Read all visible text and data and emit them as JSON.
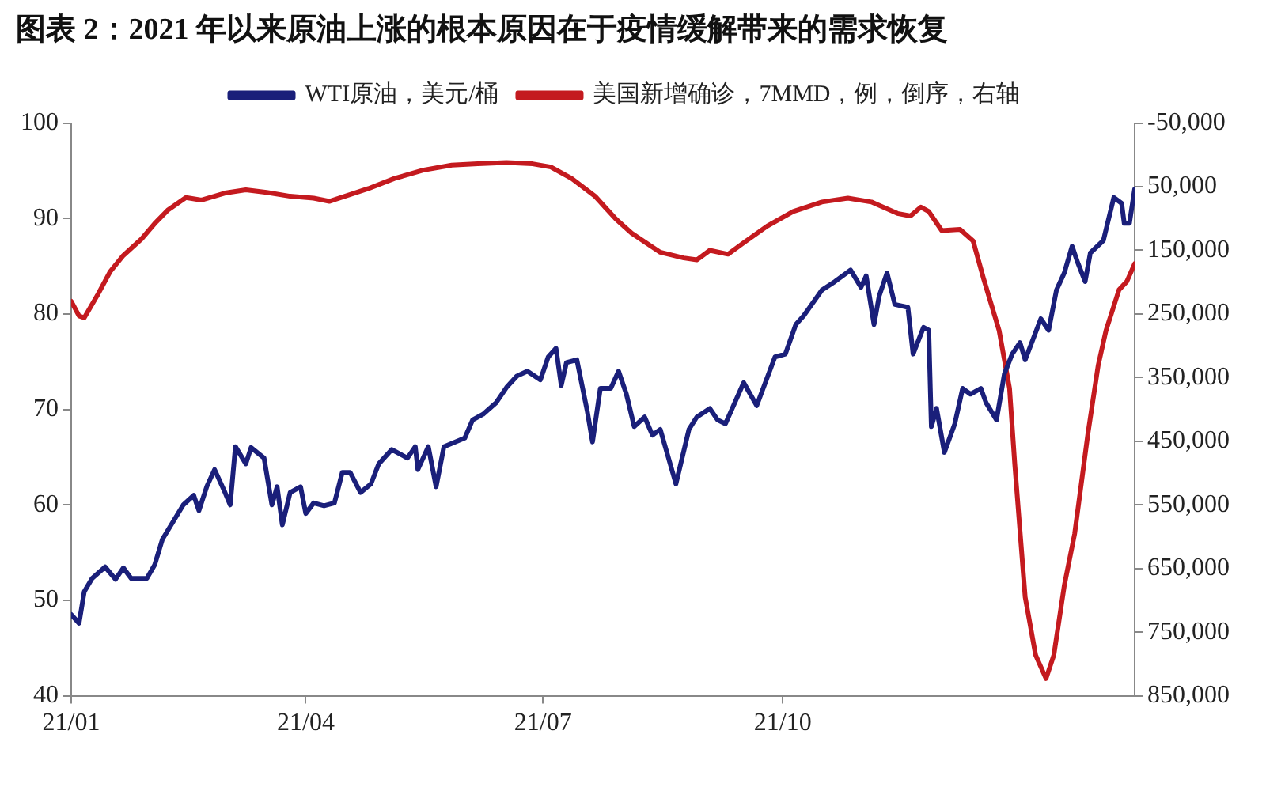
{
  "chart_data": {
    "type": "line",
    "title": "图表 2：2021 年以来原油上涨的根本原因在于疫情缓解带来的需求恢复",
    "marker": "none",
    "line_style": "solid",
    "grid": false,
    "legend": "top",
    "xlim": [
      "2021-01-01",
      "2022-02-13"
    ],
    "xticks": [
      {
        "value": "2021-01-01",
        "label": "21/01"
      },
      {
        "value": "2021-04-01",
        "label": "21/04"
      },
      {
        "value": "2021-07-01",
        "label": "21/07"
      },
      {
        "value": "2021-10-01",
        "label": "21/10"
      }
    ],
    "ylim": [
      40,
      100
    ],
    "yticks": [
      40,
      50,
      60,
      70,
      80,
      90,
      100
    ],
    "y2lim": [
      850000,
      -50000
    ],
    "y2ticks": [
      {
        "value": -50000,
        "label": "-50,000"
      },
      {
        "value": 50000,
        "label": "50,000"
      },
      {
        "value": 150000,
        "label": "150,000"
      },
      {
        "value": 250000,
        "label": "250,000"
      },
      {
        "value": 350000,
        "label": "350,000"
      },
      {
        "value": 450000,
        "label": "450,000"
      },
      {
        "value": 550000,
        "label": "550,000"
      },
      {
        "value": 650000,
        "label": "650,000"
      },
      {
        "value": 750000,
        "label": "750,000"
      },
      {
        "value": 850000,
        "label": "850,000"
      }
    ],
    "series": [
      {
        "name": "WTI原油，美元/桶",
        "color": "#1a1f7a",
        "x": [
          "2021-01-01",
          "2021-01-04",
          "2021-01-06",
          "2021-01-09",
          "2021-01-14",
          "2021-01-18",
          "2021-01-21",
          "2021-01-24",
          "2021-01-30",
          "2021-02-02",
          "2021-02-05",
          "2021-02-09",
          "2021-02-13",
          "2021-02-17",
          "2021-02-19",
          "2021-02-22",
          "2021-02-25",
          "2021-03-01",
          "2021-03-03",
          "2021-03-05",
          "2021-03-09",
          "2021-03-11",
          "2021-03-16",
          "2021-03-19",
          "2021-03-21",
          "2021-03-23",
          "2021-03-26",
          "2021-03-30",
          "2021-04-01",
          "2021-04-04",
          "2021-04-08",
          "2021-04-12",
          "2021-04-15",
          "2021-04-18",
          "2021-04-22",
          "2021-04-26",
          "2021-04-29",
          "2021-05-04",
          "2021-05-10",
          "2021-05-13",
          "2021-05-14",
          "2021-05-18",
          "2021-05-21",
          "2021-05-24",
          "2021-06-01",
          "2021-06-04",
          "2021-06-08",
          "2021-06-13",
          "2021-06-17",
          "2021-06-21",
          "2021-06-25",
          "2021-06-30",
          "2021-07-03",
          "2021-07-06",
          "2021-07-08",
          "2021-07-10",
          "2021-07-14",
          "2021-07-18",
          "2021-07-20",
          "2021-07-23",
          "2021-07-27",
          "2021-07-30",
          "2021-08-02",
          "2021-08-05",
          "2021-08-09",
          "2021-08-12",
          "2021-08-15",
          "2021-08-21",
          "2021-08-26",
          "2021-08-29",
          "2021-09-03",
          "2021-09-06",
          "2021-09-09",
          "2021-09-16",
          "2021-09-21",
          "2021-09-28",
          "2021-10-02",
          "2021-10-06",
          "2021-10-09",
          "2021-10-16",
          "2021-10-21",
          "2021-10-27",
          "2021-10-31",
          "2021-11-02",
          "2021-11-05",
          "2021-11-07",
          "2021-11-10",
          "2021-11-13",
          "2021-11-18",
          "2021-11-20",
          "2021-11-24",
          "2021-11-26",
          "2021-11-27",
          "2021-11-29",
          "2021-12-02",
          "2021-12-06",
          "2021-12-09",
          "2021-12-12",
          "2021-12-16",
          "2021-12-18",
          "2021-12-22",
          "2021-12-25",
          "2021-12-28",
          "2021-12-31",
          "2022-01-02",
          "2022-01-08",
          "2022-01-11",
          "2022-01-14",
          "2022-01-17",
          "2022-01-20",
          "2022-01-22",
          "2022-01-25",
          "2022-01-27",
          "2022-02-01",
          "2022-02-05",
          "2022-02-08",
          "2022-02-09",
          "2022-02-11",
          "2022-02-13"
        ],
        "values": [
          48.5,
          47.6,
          50.9,
          52.3,
          53.5,
          52.2,
          53.4,
          52.3,
          52.3,
          53.7,
          56.4,
          58.2,
          60.0,
          61.0,
          59.4,
          61.9,
          63.7,
          61.3,
          60.0,
          66.1,
          64.3,
          66.0,
          64.9,
          60.0,
          61.9,
          57.9,
          61.3,
          61.9,
          59.1,
          60.2,
          59.9,
          60.2,
          63.4,
          63.4,
          61.3,
          62.2,
          64.3,
          65.8,
          64.9,
          66.1,
          63.7,
          66.1,
          61.9,
          66.1,
          67.0,
          68.9,
          69.5,
          70.7,
          72.3,
          73.5,
          74.0,
          73.1,
          75.5,
          76.4,
          72.5,
          74.9,
          75.2,
          69.8,
          66.6,
          72.2,
          72.2,
          74.0,
          71.6,
          68.2,
          69.2,
          67.3,
          67.9,
          62.2,
          67.9,
          69.2,
          70.1,
          68.9,
          68.5,
          72.8,
          70.4,
          75.5,
          75.8,
          78.9,
          79.8,
          82.5,
          83.4,
          84.6,
          82.8,
          84.0,
          78.9,
          81.9,
          84.3,
          81.0,
          80.7,
          75.8,
          78.6,
          78.3,
          68.2,
          70.1,
          65.5,
          68.5,
          72.2,
          71.6,
          72.2,
          70.7,
          68.9,
          73.7,
          75.8,
          77.0,
          75.2,
          79.5,
          78.3,
          82.5,
          84.3,
          87.1,
          85.5,
          83.4,
          86.4,
          87.7,
          92.2,
          91.6,
          89.5,
          89.5,
          93.1
        ]
      },
      {
        "name": "美国新增确诊，7MMD，例，倒序，右轴",
        "color": "#c41a1f",
        "axis": "y2",
        "x": [
          "2021-01-01",
          "2021-01-04",
          "2021-01-06",
          "2021-01-11",
          "2021-01-16",
          "2021-01-21",
          "2021-01-28",
          "2021-02-02",
          "2021-02-07",
          "2021-02-14",
          "2021-02-20",
          "2021-03-01",
          "2021-03-09",
          "2021-03-17",
          "2021-03-26",
          "2021-04-04",
          "2021-04-10",
          "2021-04-16",
          "2021-04-25",
          "2021-05-05",
          "2021-05-16",
          "2021-05-27",
          "2021-06-06",
          "2021-06-17",
          "2021-06-27",
          "2021-07-04",
          "2021-07-12",
          "2021-07-21",
          "2021-07-29",
          "2021-08-04",
          "2021-08-15",
          "2021-08-24",
          "2021-08-29",
          "2021-09-03",
          "2021-09-10",
          "2021-09-16",
          "2021-09-25",
          "2021-10-05",
          "2021-10-16",
          "2021-10-26",
          "2021-11-04",
          "2021-11-14",
          "2021-11-19",
          "2021-11-23",
          "2021-11-26",
          "2021-12-01",
          "2021-12-08",
          "2021-12-13",
          "2021-12-17",
          "2021-12-23",
          "2021-12-27",
          "2021-12-29",
          "2022-01-02",
          "2022-01-06",
          "2022-01-10",
          "2022-01-13",
          "2022-01-17",
          "2022-01-21",
          "2022-01-26",
          "2022-01-30",
          "2022-02-02",
          "2022-02-07",
          "2022-02-10",
          "2022-02-13"
        ],
        "values": [
          230000,
          253000,
          256000,
          221000,
          183000,
          158000,
          132000,
          108000,
          87000,
          67000,
          71000,
          60000,
          55000,
          59000,
          65000,
          68000,
          73000,
          65000,
          53000,
          37000,
          24000,
          16000,
          14000,
          12000,
          14000,
          19000,
          37000,
          65000,
          101000,
          123000,
          153000,
          162000,
          165000,
          150000,
          156000,
          138000,
          112000,
          89000,
          74000,
          68000,
          74000,
          92000,
          96000,
          82000,
          89000,
          119000,
          117000,
          135000,
          194000,
          276000,
          367000,
          486000,
          695000,
          786000,
          823000,
          786000,
          677000,
          595000,
          440000,
          331000,
          276000,
          212000,
          199000,
          171000
        ]
      }
    ]
  }
}
